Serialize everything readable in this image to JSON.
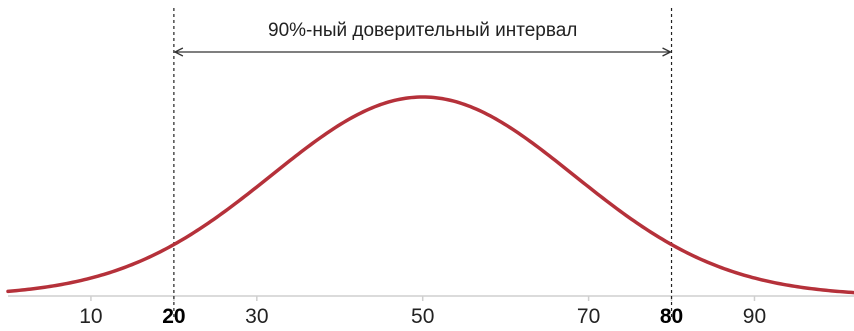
{
  "chart_data": {
    "type": "line",
    "series": [
      {
        "mean": 50,
        "sd": 18.24,
        "color": "#b5313a"
      }
    ],
    "xlim": [
      0,
      102
    ],
    "x_ticks": [
      {
        "label": "10",
        "value": 10,
        "bold": false
      },
      {
        "label": "20",
        "value": 20,
        "bold": true
      },
      {
        "label": "30",
        "value": 30,
        "bold": false
      },
      {
        "label": "50",
        "value": 50,
        "bold": false
      },
      {
        "label": "70",
        "value": 70,
        "bold": false
      },
      {
        "label": "80",
        "value": 80,
        "bold": true
      },
      {
        "label": "90",
        "value": 90,
        "bold": false
      }
    ],
    "interval": {
      "lower": 20,
      "upper": 80
    },
    "annotation": "90%-ный доверительный интервал",
    "grid": false,
    "legend": "none"
  }
}
